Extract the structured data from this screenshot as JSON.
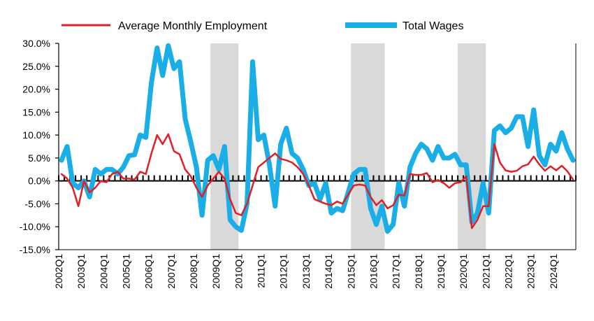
{
  "chart_data": {
    "type": "line",
    "title": "",
    "xlabel": "",
    "ylabel": "",
    "ylim": [
      -15,
      30
    ],
    "y_ticks": [
      30,
      25,
      20,
      15,
      10,
      5,
      0,
      -5,
      -10,
      -15
    ],
    "y_tick_labels": [
      "30.0%",
      "25.0%",
      "20.0%",
      "15.0%",
      "10.0%",
      "5.0%",
      "0.0%",
      "-5.0%",
      "-10.0%",
      "-15.0%"
    ],
    "x_start": "2002Q1",
    "x_end": "2024Q4",
    "x_tick_labels": [
      "2002Q1",
      "2003Q1",
      "2004Q1",
      "2005Q1",
      "2006Q1",
      "2007Q1",
      "2008Q1",
      "2009Q1",
      "2010Q1",
      "2011Q1",
      "2012Q1",
      "2013Q1",
      "2014Q1",
      "2015Q1",
      "2016Q1",
      "2017Q1",
      "2018Q1",
      "2019Q1",
      "2020Q1",
      "2021Q1",
      "2022Q1",
      "2023Q1",
      "2024Q1"
    ],
    "recession_shading": [
      {
        "start": "2008Q4",
        "end": "2009Q4"
      },
      {
        "start": "2015Q1",
        "end": "2016Q2"
      },
      {
        "start": "2019Q4",
        "end": "2020Q4"
      }
    ],
    "legend_position": "top",
    "grid": false,
    "series": [
      {
        "name": "Average Monthly Employment",
        "color": "#e01f26",
        "values": [
          1.5,
          0.5,
          -1.5,
          -5.5,
          0,
          -2.5,
          -1.5,
          0,
          -0.3,
          1.5,
          2,
          0.5,
          0.5,
          0.3,
          2,
          1.5,
          6,
          10,
          8,
          10.2,
          6.5,
          5.8,
          2.5,
          1,
          -1.5,
          -3.5,
          -1,
          0.5,
          2,
          0.5,
          -4,
          -7,
          -7.5,
          -5,
          -1,
          3,
          4,
          5,
          6,
          4.8,
          4.5,
          4,
          3,
          1.5,
          -1,
          -4,
          -4.5,
          -5,
          -5.3,
          -4.5,
          -5,
          -3,
          -1,
          -0.8,
          -1,
          -3.5,
          -5.3,
          -4.2,
          -6,
          -5.3,
          -3,
          -3.2,
          1.5,
          1.3,
          1.3,
          1.7,
          -0.3,
          0.2,
          -0.5,
          -1.5,
          -0.5,
          -0.3,
          1,
          -10.3,
          -8.5,
          -5.5,
          -5.5,
          8,
          4,
          2.3,
          2,
          2.2,
          3.2,
          3.6,
          5.3,
          3.6,
          2.2,
          3.2,
          2.3,
          3.3,
          2.1,
          0.3
        ]
      },
      {
        "name": "Total Wages",
        "color": "#1aaee6",
        "values": [
          4.5,
          7.5,
          -0.5,
          -1.5,
          0,
          -3.5,
          2.5,
          1.5,
          2.5,
          2.5,
          1.5,
          3,
          5.5,
          5.7,
          10,
          9.5,
          21.5,
          29,
          23,
          29.5,
          24.5,
          26,
          13.5,
          8.5,
          3,
          -7.5,
          4.5,
          5.5,
          2.5,
          7.5,
          -8.5,
          -10,
          -10.8,
          -5,
          26,
          9,
          10,
          3.5,
          -5.5,
          8,
          11.5,
          6,
          5,
          2.5,
          -1,
          -0.5,
          -4,
          -0.5,
          -7,
          -6,
          -6.5,
          -2.5,
          1.5,
          2.5,
          2.5,
          -6,
          -9.5,
          -5.5,
          -11,
          -9.5,
          -0.5,
          -5.5,
          3,
          6,
          8,
          7,
          4.5,
          7.5,
          5,
          5,
          5.8,
          3.5,
          3.5,
          -9,
          -7,
          -0.5,
          -7,
          11,
          12,
          10.5,
          11.5,
          14,
          14,
          7.5,
          15.5,
          5.5,
          3.5,
          8,
          6.5,
          10.5,
          7,
          4.5
        ]
      }
    ]
  }
}
